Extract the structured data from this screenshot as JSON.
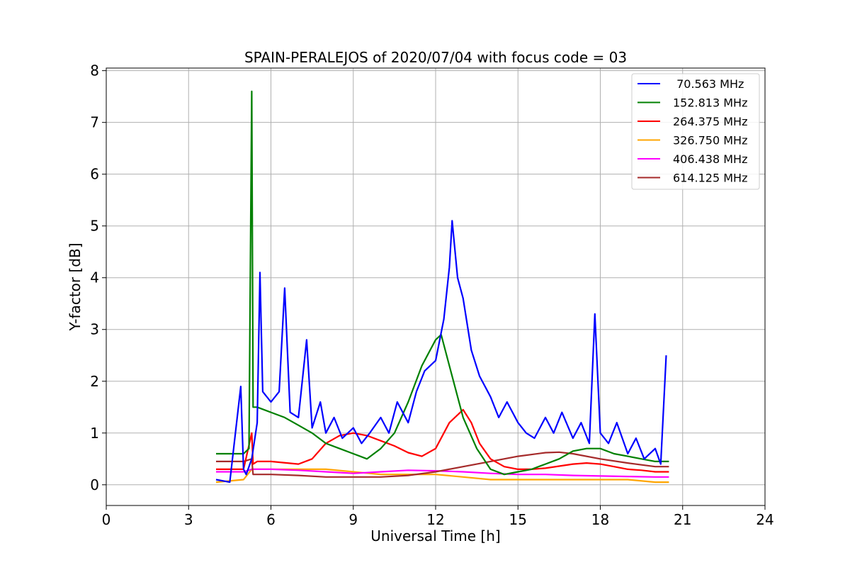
{
  "chart_data": {
    "type": "line",
    "title": "SPAIN-PERALEJOS of 2020/07/04 with focus code = 03",
    "xlabel": "Universal Time [h]",
    "ylabel": "Y-factor [dB]",
    "xlim": [
      0,
      24
    ],
    "ylim": [
      -0.4,
      8.05
    ],
    "xticks": [
      0,
      3,
      6,
      9,
      12,
      15,
      18,
      21,
      24
    ],
    "yticks": [
      0,
      1,
      2,
      3,
      4,
      5,
      6,
      7,
      8
    ],
    "grid": true,
    "legend_position": "top-right",
    "series": [
      {
        "name": " 70.563 MHz",
        "color": "#0000ff",
        "x": [
          4.0,
          4.5,
          4.9,
          5.0,
          5.1,
          5.3,
          5.5,
          5.6,
          5.7,
          6.0,
          6.3,
          6.5,
          6.7,
          7.0,
          7.3,
          7.5,
          7.8,
          8.0,
          8.3,
          8.6,
          9.0,
          9.3,
          9.6,
          10.0,
          10.3,
          10.6,
          11.0,
          11.3,
          11.6,
          12.0,
          12.3,
          12.5,
          12.6,
          12.8,
          13.0,
          13.3,
          13.6,
          14.0,
          14.3,
          14.6,
          15.0,
          15.3,
          15.6,
          16.0,
          16.3,
          16.6,
          17.0,
          17.3,
          17.6,
          17.8,
          18.0,
          18.3,
          18.6,
          19.0,
          19.3,
          19.6,
          20.0,
          20.2,
          20.4
        ],
        "y": [
          0.1,
          0.05,
          1.9,
          0.3,
          0.2,
          0.5,
          1.2,
          4.1,
          1.8,
          1.6,
          1.8,
          3.8,
          1.4,
          1.3,
          2.8,
          1.1,
          1.6,
          1.0,
          1.3,
          0.9,
          1.1,
          0.8,
          1.0,
          1.3,
          1.0,
          1.6,
          1.2,
          1.8,
          2.2,
          2.4,
          3.2,
          4.2,
          5.1,
          4.0,
          3.6,
          2.6,
          2.1,
          1.7,
          1.3,
          1.6,
          1.2,
          1.0,
          0.9,
          1.3,
          1.0,
          1.4,
          0.9,
          1.2,
          0.8,
          3.3,
          1.0,
          0.8,
          1.2,
          0.6,
          0.9,
          0.5,
          0.7,
          0.4,
          2.5
        ]
      },
      {
        "name": "152.813 MHz",
        "color": "#008000",
        "x": [
          4.0,
          4.5,
          5.0,
          5.2,
          5.3,
          5.35,
          5.5,
          6.0,
          6.5,
          7.0,
          7.5,
          8.0,
          8.5,
          9.0,
          9.5,
          10.0,
          10.5,
          11.0,
          11.5,
          12.0,
          12.2,
          12.5,
          13.0,
          13.5,
          14.0,
          14.5,
          15.0,
          15.5,
          16.0,
          16.5,
          17.0,
          17.5,
          18.0,
          18.5,
          19.0,
          19.5,
          20.0,
          20.5
        ],
        "y": [
          0.6,
          0.6,
          0.6,
          0.7,
          7.6,
          1.5,
          1.5,
          1.4,
          1.3,
          1.15,
          1.0,
          0.8,
          0.7,
          0.6,
          0.5,
          0.7,
          1.0,
          1.6,
          2.3,
          2.8,
          2.9,
          2.3,
          1.3,
          0.7,
          0.3,
          0.2,
          0.25,
          0.3,
          0.4,
          0.5,
          0.65,
          0.7,
          0.7,
          0.6,
          0.55,
          0.5,
          0.45,
          0.45
        ]
      },
      {
        "name": "264.375 MHz",
        "color": "#ff0000",
        "x": [
          4.0,
          5.0,
          5.3,
          5.35,
          5.5,
          6.0,
          7.0,
          7.5,
          8.0,
          8.5,
          9.0,
          9.5,
          10.0,
          10.5,
          11.0,
          11.5,
          12.0,
          12.5,
          13.0,
          13.3,
          13.6,
          14.0,
          14.5,
          15.0,
          15.5,
          16.0,
          16.5,
          17.0,
          17.5,
          18.0,
          18.5,
          19.0,
          19.5,
          20.0,
          20.5
        ],
        "y": [
          0.3,
          0.3,
          1.0,
          0.4,
          0.45,
          0.45,
          0.4,
          0.5,
          0.8,
          0.95,
          1.0,
          0.95,
          0.85,
          0.75,
          0.62,
          0.55,
          0.7,
          1.2,
          1.45,
          1.2,
          0.8,
          0.5,
          0.35,
          0.3,
          0.3,
          0.32,
          0.36,
          0.4,
          0.42,
          0.4,
          0.35,
          0.3,
          0.28,
          0.25,
          0.25
        ]
      },
      {
        "name": "326.750 MHz",
        "color": "#ffa500",
        "x": [
          4.0,
          5.0,
          5.3,
          6.0,
          7.0,
          8.0,
          9.0,
          10.0,
          11.0,
          12.0,
          13.0,
          14.0,
          15.0,
          16.0,
          17.0,
          18.0,
          19.0,
          20.0,
          20.5
        ],
        "y": [
          0.05,
          0.1,
          0.3,
          0.3,
          0.3,
          0.3,
          0.25,
          0.2,
          0.2,
          0.2,
          0.15,
          0.1,
          0.1,
          0.1,
          0.1,
          0.1,
          0.1,
          0.05,
          0.05
        ]
      },
      {
        "name": "406.438 MHz",
        "color": "#ff00ff",
        "x": [
          4.0,
          5.0,
          5.3,
          6.0,
          7.0,
          8.0,
          9.0,
          10.0,
          11.0,
          12.0,
          13.0,
          14.0,
          15.0,
          16.0,
          17.0,
          18.0,
          19.0,
          20.0,
          20.5
        ],
        "y": [
          0.25,
          0.25,
          0.3,
          0.3,
          0.28,
          0.25,
          0.22,
          0.25,
          0.28,
          0.27,
          0.25,
          0.22,
          0.2,
          0.2,
          0.18,
          0.17,
          0.16,
          0.15,
          0.15
        ]
      },
      {
        "name": "614.125 MHz",
        "color": "#a52a2a",
        "x": [
          4.0,
          5.0,
          5.3,
          5.35,
          6.0,
          7.0,
          8.0,
          9.0,
          10.0,
          11.0,
          12.0,
          13.0,
          14.0,
          15.0,
          16.0,
          16.5,
          17.0,
          18.0,
          19.0,
          20.0,
          20.5
        ],
        "y": [
          0.45,
          0.45,
          0.5,
          0.2,
          0.2,
          0.18,
          0.15,
          0.15,
          0.15,
          0.18,
          0.25,
          0.35,
          0.45,
          0.55,
          0.62,
          0.63,
          0.6,
          0.5,
          0.42,
          0.35,
          0.35
        ]
      }
    ]
  }
}
